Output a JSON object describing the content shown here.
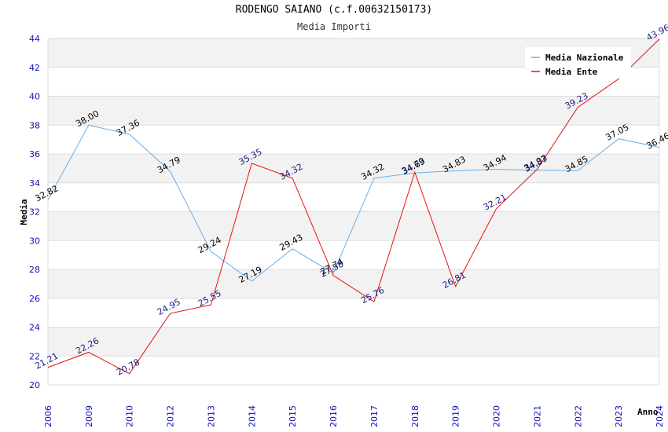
{
  "chart_data": {
    "type": "line",
    "title": "RODENGO SAIANO (c.f.00632150173)",
    "subtitle": "Media Importi",
    "ylabel": "Media",
    "xlabel": "Anno",
    "ylim": [
      20,
      44
    ],
    "yticks": [
      20,
      22,
      24,
      26,
      28,
      30,
      32,
      34,
      36,
      38,
      40,
      42,
      44
    ],
    "categories": [
      "2006",
      "2009",
      "2010",
      "2012",
      "2013",
      "2014",
      "2015",
      "2016",
      "2017",
      "2018",
      "2019",
      "2020",
      "2021",
      "2022",
      "2023",
      "2024"
    ],
    "legend_position": "top-right",
    "grid": true,
    "series": [
      {
        "name": "Media Nazionale",
        "color": "#6aaee8",
        "values": [
          32.82,
          38.0,
          37.36,
          34.79,
          29.24,
          27.19,
          29.43,
          27.74,
          34.32,
          34.69,
          34.83,
          34.94,
          34.87,
          34.85,
          37.05,
          36.46
        ],
        "labels": [
          "32.82",
          "38.00",
          "37.36",
          "34.79",
          "29.24",
          "27.19",
          "29.43",
          "27.74",
          "34.32",
          "34.69",
          "34.83",
          "34.94",
          "34.87",
          "34.85",
          "37.05",
          "36.46"
        ]
      },
      {
        "name": "Media Ente",
        "color": "#e81010",
        "values": [
          21.21,
          22.26,
          20.78,
          24.95,
          25.55,
          35.35,
          34.32,
          27.58,
          25.76,
          34.73,
          26.81,
          32.21,
          34.93,
          39.23,
          41.2,
          43.96
        ],
        "labels": [
          "21.21",
          "22.26",
          "20.78",
          "24.95",
          "25.55",
          "35.35",
          "34.32",
          "27.58",
          "25.76",
          "34.73",
          "26.81",
          "32.21",
          "34.93",
          "39.23",
          "",
          "43.96"
        ]
      }
    ]
  }
}
